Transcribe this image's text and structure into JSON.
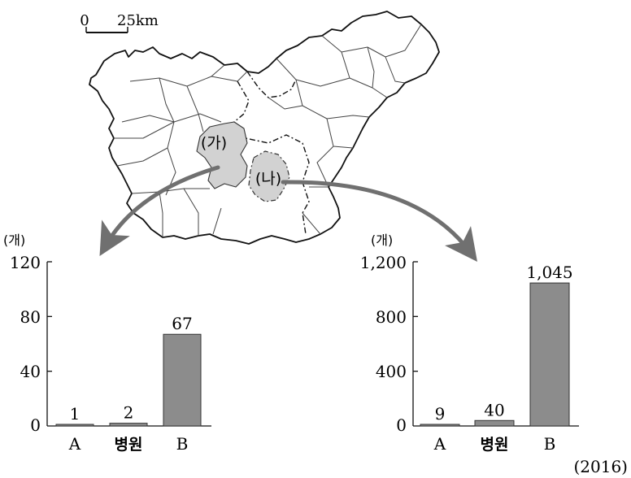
{
  "map": {
    "scale_zero": "0",
    "scale_distance": "25km",
    "region_ga": "(가)",
    "region_na": "(나)"
  },
  "year_note": "(2016)",
  "colors": {
    "bar": "#8c8c8c",
    "region_fill": "#d2d2d2",
    "arrow": "#707070"
  },
  "chart_data": [
    {
      "type": "bar",
      "region": "(가)",
      "unit_label": "(개)",
      "categories": [
        "A",
        "병원",
        "B"
      ],
      "values": [
        1,
        2,
        67
      ],
      "value_labels": [
        "1",
        "2",
        "67"
      ],
      "yticks": [
        "0",
        "40",
        "80",
        "120"
      ],
      "ylim": [
        0,
        120
      ]
    },
    {
      "type": "bar",
      "region": "(나)",
      "unit_label": "(개)",
      "categories": [
        "A",
        "병원",
        "B"
      ],
      "values": [
        9,
        40,
        1045
      ],
      "value_labels": [
        "9",
        "40",
        "1,045"
      ],
      "yticks": [
        "0",
        "400",
        "800",
        "1,200"
      ],
      "ylim": [
        0,
        1200
      ]
    }
  ]
}
